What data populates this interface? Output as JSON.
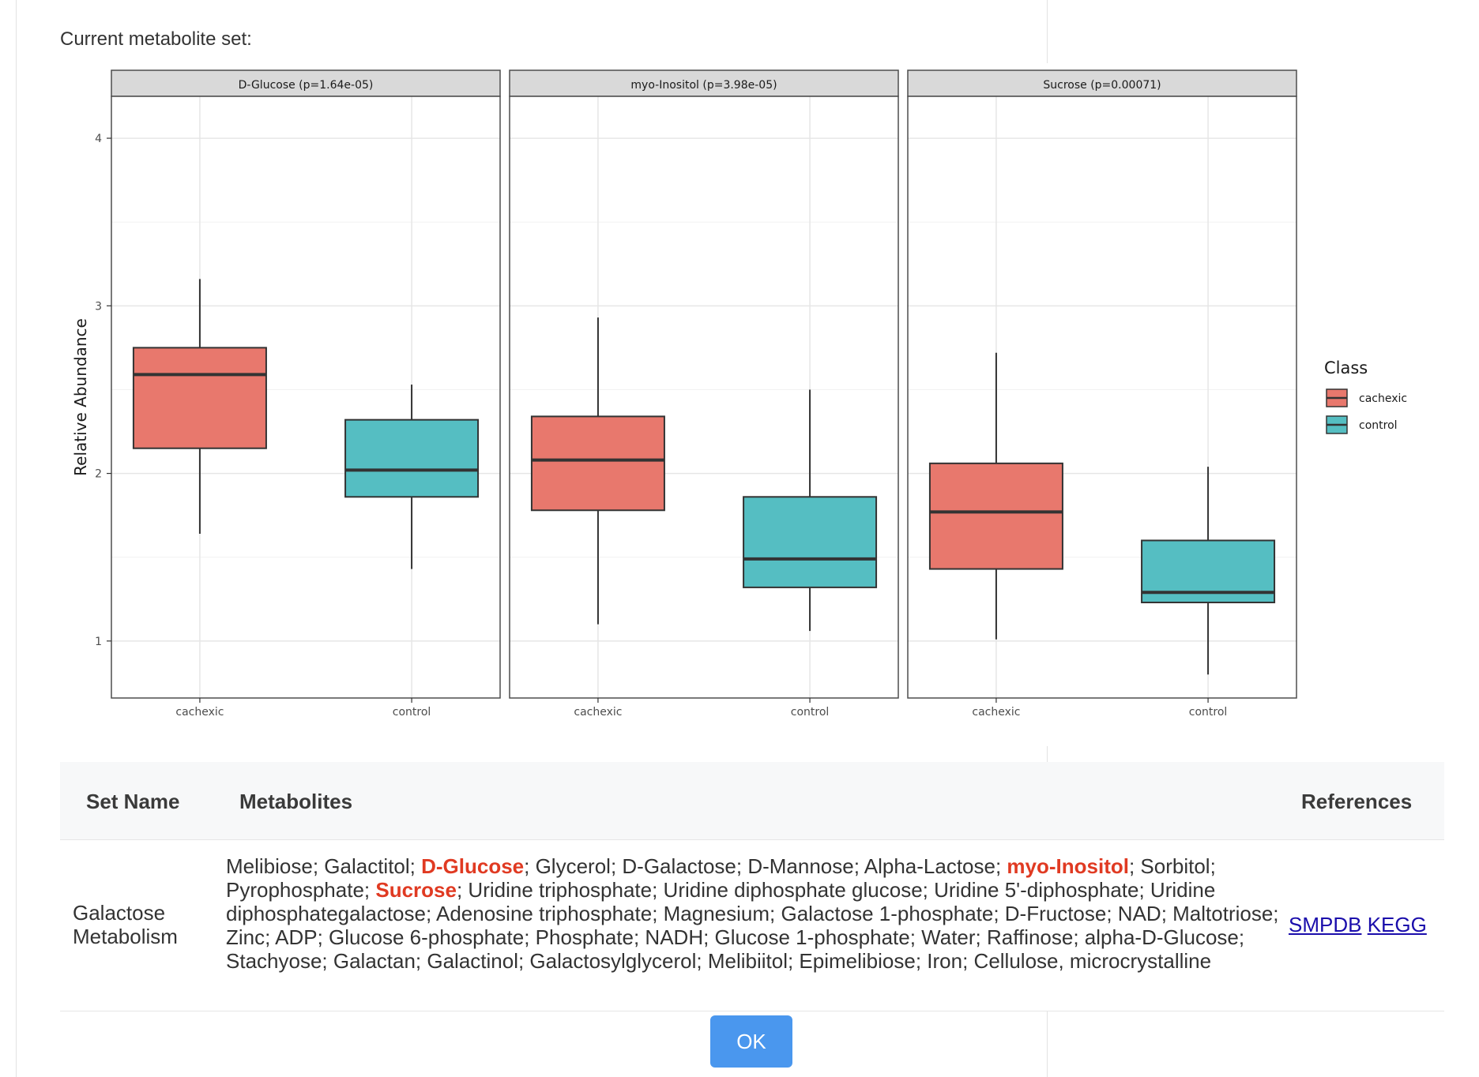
{
  "page": {
    "caption": "Current metabolite set:",
    "ok_label": "OK"
  },
  "chart_data": {
    "type": "box",
    "ylabel": "Relative Abundance",
    "ylim": [
      0.66,
      4.25
    ],
    "y_ticks": [
      1,
      2,
      3,
      4
    ],
    "grid": true,
    "legend": {
      "title": "Class",
      "position": "right",
      "entries": [
        "cachexic",
        "control"
      ]
    },
    "colors": {
      "cachexic": "#e8786d",
      "control": "#55bec2"
    },
    "categories": [
      "cachexic",
      "control"
    ],
    "panels": [
      {
        "title": "D-Glucose (p=1.64e-05)",
        "boxes": [
          {
            "group": "cachexic",
            "min": 1.64,
            "q1": 2.15,
            "median": 2.59,
            "q3": 2.75,
            "max": 3.16
          },
          {
            "group": "control",
            "min": 1.43,
            "q1": 1.86,
            "median": 2.02,
            "q3": 2.32,
            "max": 2.53
          }
        ]
      },
      {
        "title": "myo-Inositol (p=3.98e-05)",
        "boxes": [
          {
            "group": "cachexic",
            "min": 1.1,
            "q1": 1.78,
            "median": 2.08,
            "q3": 2.34,
            "max": 2.93
          },
          {
            "group": "control",
            "min": 1.06,
            "q1": 1.32,
            "median": 1.49,
            "q3": 1.86,
            "max": 2.5
          }
        ]
      },
      {
        "title": "Sucrose (p=0.00071)",
        "boxes": [
          {
            "group": "cachexic",
            "min": 1.01,
            "q1": 1.43,
            "median": 1.77,
            "q3": 2.06,
            "max": 2.72
          },
          {
            "group": "control",
            "min": 0.8,
            "q1": 1.23,
            "median": 1.29,
            "q3": 1.6,
            "max": 2.04
          }
        ]
      }
    ]
  },
  "table": {
    "headers": {
      "set_name": "Set Name",
      "metabolites": "Metabolites",
      "references": "References"
    },
    "row": {
      "set_name": "Galactose Metabolism",
      "metabolites": [
        {
          "text": "Melibiose; Galactitol; ",
          "highlight": false
        },
        {
          "text": "D-Glucose",
          "highlight": true
        },
        {
          "text": "; Glycerol; D-Galactose; D-Mannose; Alpha-Lactose; ",
          "highlight": false
        },
        {
          "text": "myo-Inositol",
          "highlight": true
        },
        {
          "text": "; Sorbitol; Pyrophosphate; ",
          "highlight": false
        },
        {
          "text": "Sucrose",
          "highlight": true
        },
        {
          "text": "; Uridine triphosphate; Uridine diphosphate glucose; Uridine 5'-diphosphate; Uridine diphosphategalactose; Adenosine triphosphate; Magnesium; Galactose 1-phosphate; D-Fructose; NAD; Maltotriose; Zinc; ADP; Glucose 6-phosphate; Phosphate; NADH; Glucose 1-phosphate; Water; Raffinose; alpha-D-Glucose; Stachyose; Galactan; Galactinol; Galactosylglycerol; Melibiitol; Epimelibiose; Iron; Cellulose, microcrystalline",
          "highlight": false
        }
      ],
      "references": [
        "SMPDB",
        "KEGG"
      ]
    }
  }
}
